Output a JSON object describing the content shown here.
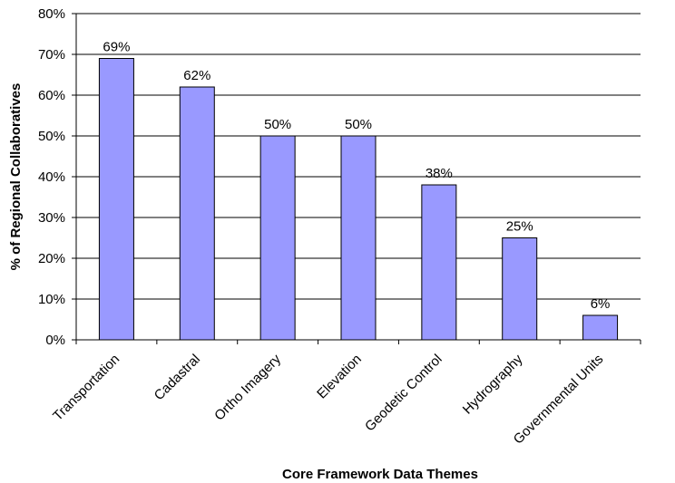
{
  "chart_data": {
    "type": "bar",
    "categories": [
      "Transportation",
      "Cadastral",
      "Ortho Imagery",
      "Elevation",
      "Geodetic Control",
      "Hydrography",
      "Governmental Units"
    ],
    "values": [
      69,
      62,
      50,
      50,
      38,
      25,
      6
    ],
    "value_labels": [
      "69%",
      "62%",
      "50%",
      "50%",
      "38%",
      "25%",
      "6%"
    ],
    "title": "",
    "xlabel": "Core Framework Data Themes",
    "ylabel": "% of Regional Collaboratives",
    "ylim": [
      0,
      80
    ],
    "yticks": [
      "0%",
      "10%",
      "20%",
      "30%",
      "40%",
      "50%",
      "60%",
      "70%",
      "80%"
    ],
    "grid": true,
    "legend": "none",
    "colors": {
      "bar_fill": "#9999ff",
      "bar_stroke": "#000000",
      "grid": "#000000"
    }
  }
}
